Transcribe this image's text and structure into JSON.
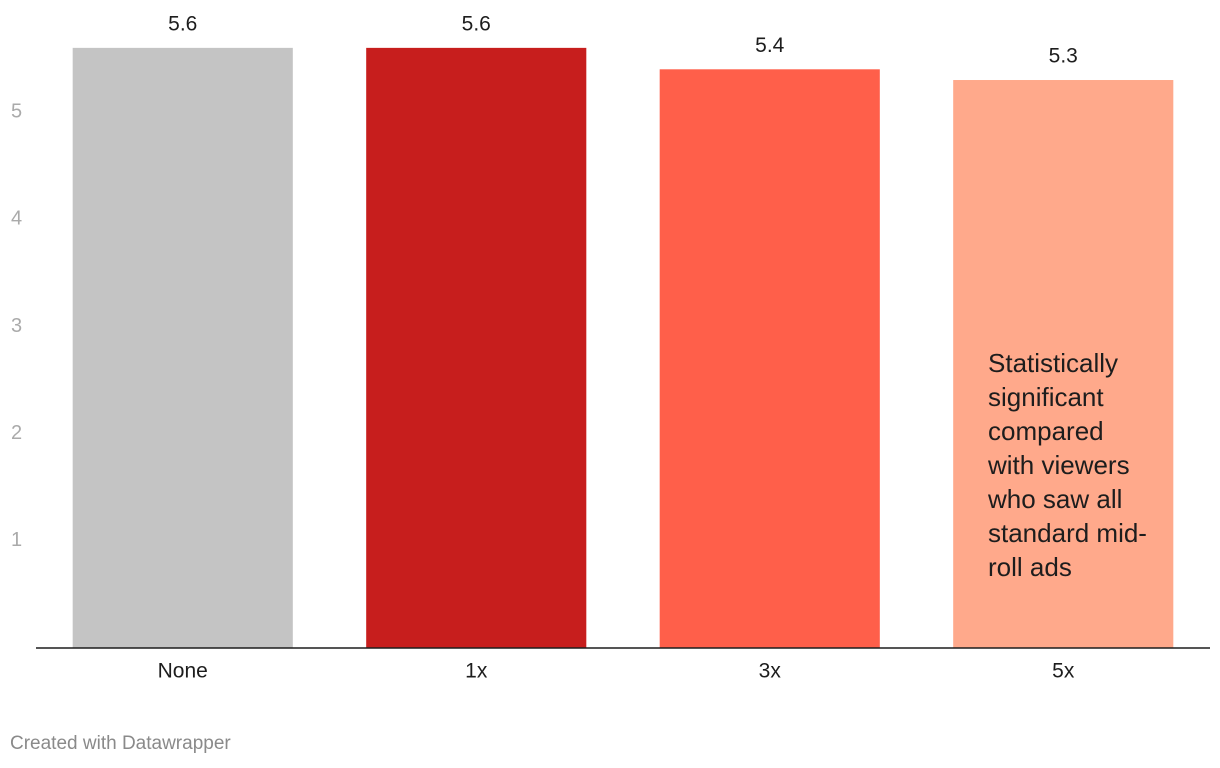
{
  "chart_data": {
    "type": "bar",
    "categories": [
      "None",
      "1x",
      "3x",
      "5x"
    ],
    "values": [
      5.6,
      5.6,
      5.4,
      5.3
    ],
    "colors": [
      "#c4c4c4",
      "#c71e1d",
      "#ff5f4a",
      "#ffa98b"
    ],
    "ylim": [
      0,
      6
    ],
    "yticks": [
      1,
      2,
      3,
      4,
      5
    ],
    "grid": false,
    "annotation": "Statistically significant compared with viewers who saw all standard mid-roll ads",
    "credit": "Created with Datawrapper"
  }
}
